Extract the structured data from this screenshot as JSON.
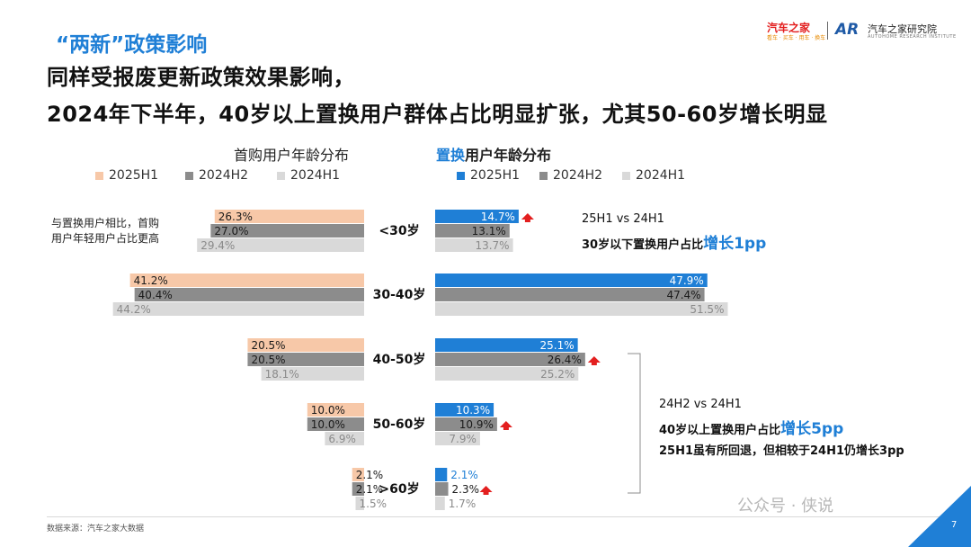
{
  "header": {
    "tag": "“两新”政策影响",
    "headline_line1": "同样受报废更新政策效果影响，",
    "headline_line2": "2024年下半年，40岁以上置换用户群体占比明显扩张，尤其50-60岁增长明显"
  },
  "logo": {
    "autohome": "汽车之家",
    "autohome_sub": "看车 · 买车 · 用车 · 换车",
    "mark": "AR",
    "institute": "汽车之家研究院",
    "institute_sub": "AUTOHOME RESEARCH INSTITUTE"
  },
  "colors": {
    "first_2025H1": "#f7c8a8",
    "second_2024H2": "#8c8c8c",
    "third_2024H1": "#d9d9d9",
    "replace_2025H1": "#1f7fd6",
    "accent_blue": "#1f7fd6",
    "arrow_red": "#e31f1f"
  },
  "chart_data": [
    {
      "type": "bar",
      "orientation": "horizontal",
      "direction": "right-to-left",
      "title": "首购用户年龄分布",
      "categories": [
        "<30岁",
        "30-40岁",
        "40-50岁",
        "50-60岁",
        ">60岁"
      ],
      "series": [
        {
          "name": "2025H1",
          "values": [
            26.3,
            41.2,
            20.5,
            10.0,
            2.1
          ]
        },
        {
          "name": "2024H2",
          "values": [
            27.0,
            40.4,
            20.5,
            10.0,
            2.1
          ]
        },
        {
          "name": "2024H1",
          "values": [
            29.4,
            44.2,
            18.1,
            6.9,
            1.5
          ]
        }
      ],
      "value_labels": [
        [
          "26.3%",
          "41.2%",
          "20.5%",
          "10.0%",
          "2.1%"
        ],
        [
          "27.0%",
          "40.4%",
          "20.5%",
          "10.0%",
          "2.1%"
        ],
        [
          "29.4%",
          "44.2%",
          "18.1%",
          "6.9%",
          "1.5%"
        ]
      ],
      "legend_position": "top"
    },
    {
      "type": "bar",
      "orientation": "horizontal",
      "direction": "left-to-right",
      "title": "置换用户年龄分布",
      "categories": [
        "<30岁",
        "30-40岁",
        "40-50岁",
        "50-60岁",
        ">60岁"
      ],
      "series": [
        {
          "name": "2025H1",
          "values": [
            14.7,
            47.9,
            25.1,
            10.3,
            2.1
          ]
        },
        {
          "name": "2024H2",
          "values": [
            13.1,
            47.4,
            26.4,
            10.9,
            2.3
          ]
        },
        {
          "name": "2024H1",
          "values": [
            13.7,
            51.5,
            25.2,
            7.9,
            1.7
          ]
        }
      ],
      "value_labels": [
        [
          "14.7%",
          "47.9%",
          "25.1%",
          "10.3%",
          "2.1%"
        ],
        [
          "13.1%",
          "47.4%",
          "26.4%",
          "10.9%",
          "2.3%"
        ],
        [
          "13.7%",
          "51.5%",
          "25.2%",
          "7.9%",
          "1.7%"
        ]
      ],
      "up_arrows": [
        {
          "category": "<30岁",
          "series": "2025H1"
        },
        {
          "category": "40-50岁",
          "series": "2024H2"
        },
        {
          "category": "50-60岁",
          "series": "2024H2"
        },
        {
          "category": ">60岁",
          "series": "2024H2"
        }
      ],
      "legend_position": "top"
    }
  ],
  "legend": {
    "left": [
      "2025H1",
      "2024H2",
      "2024H1"
    ],
    "right": [
      "2025H1",
      "2024H2",
      "2024H1"
    ]
  },
  "panel_titles": {
    "left": "首购用户年龄分布",
    "right_accent": "置换",
    "right_rest": "用户年龄分布"
  },
  "notes": {
    "left_line1": "与置换用户相比，首购",
    "left_line2": "用户年轻用户占比更高",
    "top_compare": "25H1 vs 24H1",
    "top_text": "30岁以下置换用户占比",
    "top_highlight": "增长1pp",
    "bottom_compare": "24H2 vs 24H1",
    "bottom_text": "40岁以上置换用户占比",
    "bottom_highlight": "增长5pp",
    "bottom_line3": "25H1虽有所回退，但相较于24H1仍增长3pp"
  },
  "footer": {
    "source": "数据来源：汽车之家大数据",
    "watermark": "公众号 · 侠说",
    "page_number": "7"
  }
}
